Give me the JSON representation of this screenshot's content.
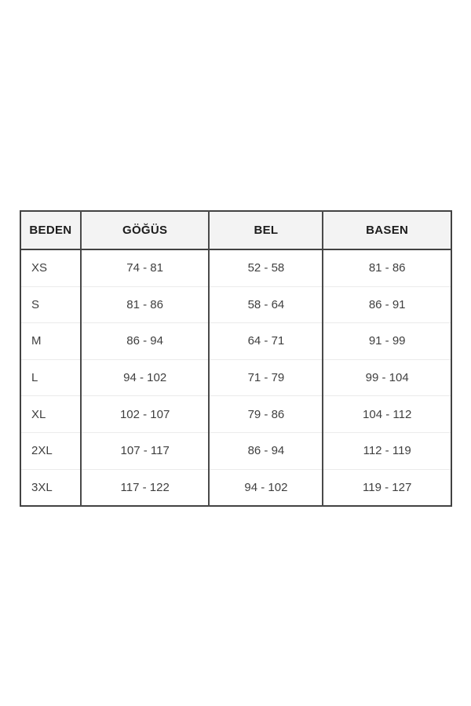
{
  "chart_data": {
    "type": "table",
    "title": "",
    "columns": [
      "BEDEN",
      "GÖĞÜS",
      "BEL",
      "BASEN"
    ],
    "rows": [
      [
        "XS",
        "74 - 81",
        "52 - 58",
        "81 - 86"
      ],
      [
        "S",
        "81 - 86",
        "58 - 64",
        "86 - 91"
      ],
      [
        "M",
        "86 - 94",
        "64 - 71",
        "91 - 99"
      ],
      [
        "L",
        "94 - 102",
        "71 - 79",
        "99 - 104"
      ],
      [
        "XL",
        "102 - 107",
        "79 - 86",
        "104 - 112"
      ],
      [
        "2XL",
        "107 - 117",
        "86 - 94",
        "112 - 119"
      ],
      [
        "3XL",
        "117 - 122",
        "94 - 102",
        "119 - 127"
      ]
    ],
    "layout": {
      "grid": "outer and column borders dark, faint row separators",
      "header_background": "#f3f3f3"
    }
  },
  "colors": {
    "page_bg": "#ffffff",
    "header_bg": "#f3f3f3",
    "border_dark": "#424242",
    "row_divider": "#ebebeb",
    "header_text": "#1c1c1c",
    "cell_text": "#3f3f3f"
  }
}
